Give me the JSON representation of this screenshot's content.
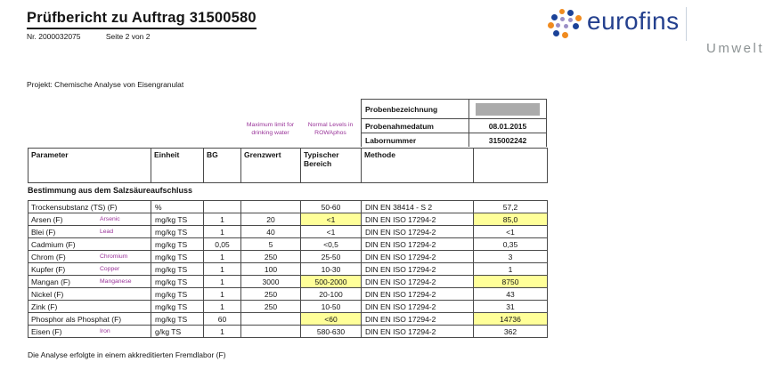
{
  "header": {
    "title": "Prüfbericht zu Auftrag 31500580",
    "report_no": "Nr. 2000032075",
    "page_info": "Seite 2 von 2"
  },
  "logo": {
    "brand": "eurofins",
    "division": "Umwelt",
    "brand_color": "#24408e",
    "division_color": "#8d9394",
    "dot_colors": {
      "blue": "#1b4298",
      "orange": "#f08b1f",
      "purple": "#9b8fc6"
    }
  },
  "project_line": "Projekt: Chemische Analyse von Eisengranulat",
  "sample_info": {
    "rows": [
      {
        "label": "Probenbezeichnung",
        "value": "",
        "redacted": true
      },
      {
        "label": "Probenahmedatum",
        "value": "08.01.2015",
        "redacted": false
      },
      {
        "label": "Labornummer",
        "value": "315002242",
        "redacted": false
      }
    ]
  },
  "annotations": {
    "grenzwert_note": "Maximum limit for drinking water",
    "typisch_note": "Normal Levels in ROWAphos",
    "color": "#993399"
  },
  "table": {
    "columns": [
      "Parameter",
      "Einheit",
      "BG",
      "Grenzwert",
      "Typischer Bereich",
      "Methode"
    ],
    "section_title": "Bestimmung aus dem Salzsäureaufschluss",
    "highlight_color": "#ffff99",
    "rows": [
      {
        "param": "Trockensubstanz (TS) (F)",
        "annotation": "",
        "einheit": "%",
        "bg": "",
        "grenzwert": "",
        "typisch": "50-60",
        "typisch_hl": false,
        "methode": "DIN EN 38414 - S 2",
        "wert": "57,2",
        "wert_hl": false
      },
      {
        "param": "Arsen (F)",
        "annotation": "Arsenic",
        "einheit": "mg/kg TS",
        "bg": "1",
        "grenzwert": "20",
        "typisch": "<1",
        "typisch_hl": true,
        "methode": "DIN EN ISO 17294-2",
        "wert": "85,0",
        "wert_hl": true
      },
      {
        "param": "Blei (F)",
        "annotation": "Lead",
        "einheit": "mg/kg TS",
        "bg": "1",
        "grenzwert": "40",
        "typisch": "<1",
        "typisch_hl": false,
        "methode": "DIN EN ISO 17294-2",
        "wert": "<1",
        "wert_hl": false
      },
      {
        "param": "Cadmium (F)",
        "annotation": "",
        "einheit": "mg/kg TS",
        "bg": "0,05",
        "grenzwert": "5",
        "typisch": "<0,5",
        "typisch_hl": false,
        "methode": "DIN EN ISO 17294-2",
        "wert": "0,35",
        "wert_hl": false
      },
      {
        "param": "Chrom (F)",
        "annotation": "Chromium",
        "einheit": "mg/kg TS",
        "bg": "1",
        "grenzwert": "250",
        "typisch": "25-50",
        "typisch_hl": false,
        "methode": "DIN EN ISO 17294-2",
        "wert": "3",
        "wert_hl": false
      },
      {
        "param": "Kupfer (F)",
        "annotation": "Copper",
        "einheit": "mg/kg TS",
        "bg": "1",
        "grenzwert": "100",
        "typisch": "10-30",
        "typisch_hl": false,
        "methode": "DIN EN ISO 17294-2",
        "wert": "1",
        "wert_hl": false
      },
      {
        "param": "Mangan (F)",
        "annotation": "Manganese",
        "einheit": "mg/kg TS",
        "bg": "1",
        "grenzwert": "3000",
        "typisch": "500-2000",
        "typisch_hl": true,
        "methode": "DIN EN ISO 17294-2",
        "wert": "8750",
        "wert_hl": true
      },
      {
        "param": "Nickel (F)",
        "annotation": "",
        "einheit": "mg/kg TS",
        "bg": "1",
        "grenzwert": "250",
        "typisch": "20-100",
        "typisch_hl": false,
        "methode": "DIN EN ISO 17294-2",
        "wert": "43",
        "wert_hl": false
      },
      {
        "param": "Zink (F)",
        "annotation": "",
        "einheit": "mg/kg TS",
        "bg": "1",
        "grenzwert": "250",
        "typisch": "10-50",
        "typisch_hl": false,
        "methode": "DIN EN ISO 17294-2",
        "wert": "31",
        "wert_hl": false
      },
      {
        "param": "Phosphor als Phosphat (F)",
        "annotation": "",
        "einheit": "mg/kg TS",
        "bg": "60",
        "grenzwert": "",
        "typisch": "<60",
        "typisch_hl": true,
        "methode": "DIN EN ISO 17294-2",
        "wert": "14736",
        "wert_hl": true
      },
      {
        "param": "Eisen (F)",
        "annotation": "Iron",
        "einheit": "g/kg TS",
        "bg": "1",
        "grenzwert": "",
        "typisch": "580-630",
        "typisch_hl": false,
        "methode": "DIN EN ISO 17294-2",
        "wert": "362",
        "wert_hl": false
      }
    ]
  },
  "footer": {
    "note": "Die Analyse erfolgte in einem akkreditierten Fremdlabor (F)"
  }
}
